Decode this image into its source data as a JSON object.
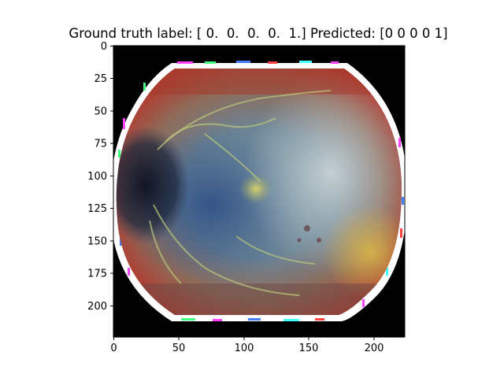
{
  "figure": {
    "title": "Ground truth label: [ 0.  0.  0.  0.  1.] Predicted: [0 0 0 0 1]",
    "image_description_icon": "retina-fundus-image",
    "x_axis": {
      "ticks": [
        "0",
        "50",
        "100",
        "150",
        "200"
      ],
      "range": [
        0,
        224
      ]
    },
    "y_axis": {
      "ticks": [
        "0",
        "25",
        "50",
        "75",
        "100",
        "125",
        "150",
        "175",
        "200"
      ],
      "range": [
        0,
        224
      ]
    },
    "colors": {
      "background": "#000000",
      "rim": "#ffffff"
    }
  }
}
